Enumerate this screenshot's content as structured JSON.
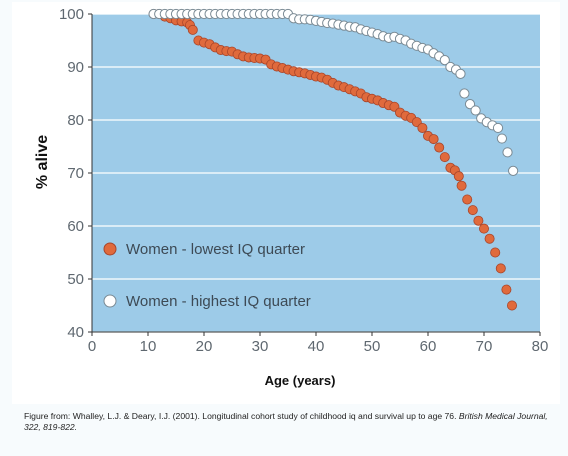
{
  "chart_data": {
    "type": "scatter",
    "title": "",
    "xlabel": "Age (years)",
    "ylabel": "% alive",
    "xlim": [
      0,
      80
    ],
    "ylim": [
      40,
      100
    ],
    "x_ticks": [
      "0",
      "10",
      "20",
      "30",
      "40",
      "50",
      "60",
      "70",
      "80"
    ],
    "y_ticks": [
      "40",
      "50",
      "60",
      "70",
      "80",
      "90",
      "100"
    ],
    "grid": true,
    "legend_position": "bottom-left",
    "series": [
      {
        "name": "Women - lowest IQ quarter",
        "color": "#e06a3c",
        "marker": "filled-circle",
        "points": [
          [
            11,
            100
          ],
          [
            12,
            100
          ],
          [
            13,
            99.5
          ],
          [
            14,
            99.2
          ],
          [
            15,
            98.8
          ],
          [
            16,
            98.6
          ],
          [
            17,
            98.4
          ],
          [
            17.5,
            97.9
          ],
          [
            18,
            97
          ],
          [
            19,
            95
          ],
          [
            20,
            94.6
          ],
          [
            21,
            94.3
          ],
          [
            22,
            93.7
          ],
          [
            23,
            93.2
          ],
          [
            24,
            93
          ],
          [
            25,
            92.9
          ],
          [
            26,
            92.4
          ],
          [
            27,
            92
          ],
          [
            28,
            91.8
          ],
          [
            29,
            91.7
          ],
          [
            30,
            91.6
          ],
          [
            31,
            91.4
          ],
          [
            32,
            90.5
          ],
          [
            33,
            90.1
          ],
          [
            34,
            89.8
          ],
          [
            35,
            89.5
          ],
          [
            36,
            89.2
          ],
          [
            37,
            89
          ],
          [
            38,
            88.8
          ],
          [
            39,
            88.5
          ],
          [
            40,
            88.2
          ],
          [
            41,
            88
          ],
          [
            42,
            87.6
          ],
          [
            43,
            87
          ],
          [
            44,
            86.5
          ],
          [
            45,
            86.2
          ],
          [
            46,
            85.8
          ],
          [
            47,
            85.4
          ],
          [
            48,
            85
          ],
          [
            49,
            84.3
          ],
          [
            50,
            84
          ],
          [
            51,
            83.7
          ],
          [
            52,
            83.2
          ],
          [
            53,
            82.8
          ],
          [
            54,
            82.5
          ],
          [
            55,
            81.4
          ],
          [
            56,
            80.8
          ],
          [
            57,
            80.4
          ],
          [
            58,
            79.6
          ],
          [
            59,
            78.5
          ],
          [
            60,
            77
          ],
          [
            61,
            76.4
          ],
          [
            62,
            74.8
          ],
          [
            63,
            73
          ],
          [
            64,
            71
          ],
          [
            64.8,
            70.5
          ],
          [
            65.5,
            69.4
          ],
          [
            66,
            67.6
          ],
          [
            67,
            65
          ],
          [
            68,
            63
          ],
          [
            69,
            61
          ],
          [
            70,
            59.5
          ],
          [
            71,
            57.6
          ],
          [
            72,
            55
          ],
          [
            73,
            52
          ],
          [
            74,
            48
          ],
          [
            75,
            45
          ]
        ]
      },
      {
        "name": "Women - highest IQ quarter",
        "color": "#ffffff",
        "marker": "open-circle",
        "points": [
          [
            11,
            100
          ],
          [
            12,
            100
          ],
          [
            13,
            100
          ],
          [
            14,
            100
          ],
          [
            15,
            100
          ],
          [
            16,
            100
          ],
          [
            17,
            100
          ],
          [
            18,
            100
          ],
          [
            19,
            100
          ],
          [
            20,
            100
          ],
          [
            21,
            100
          ],
          [
            22,
            100
          ],
          [
            23,
            100
          ],
          [
            24,
            100
          ],
          [
            25,
            100
          ],
          [
            26,
            100
          ],
          [
            27,
            100
          ],
          [
            28,
            100
          ],
          [
            29,
            100
          ],
          [
            30,
            100
          ],
          [
            31,
            100
          ],
          [
            32,
            100
          ],
          [
            33,
            100
          ],
          [
            34,
            100
          ],
          [
            35,
            100
          ],
          [
            36,
            99.2
          ],
          [
            37,
            99
          ],
          [
            38,
            99
          ],
          [
            39,
            98.9
          ],
          [
            40,
            98.7
          ],
          [
            41,
            98.5
          ],
          [
            42,
            98.3
          ],
          [
            43,
            98.2
          ],
          [
            44,
            98
          ],
          [
            45,
            97.8
          ],
          [
            46,
            97.6
          ],
          [
            47,
            97.5
          ],
          [
            48,
            97.1
          ],
          [
            49,
            96.8
          ],
          [
            50,
            96.5
          ],
          [
            51,
            96.2
          ],
          [
            52,
            95.8
          ],
          [
            53,
            95.5
          ],
          [
            54,
            95.7
          ],
          [
            55,
            95.3
          ],
          [
            56,
            95
          ],
          [
            57,
            94.4
          ],
          [
            58,
            94
          ],
          [
            59,
            93.6
          ],
          [
            60,
            93.3
          ],
          [
            61,
            92.6
          ],
          [
            62,
            92
          ],
          [
            63,
            91.3
          ],
          [
            64,
            90
          ],
          [
            65,
            89.5
          ],
          [
            65.8,
            88.7
          ],
          [
            66.5,
            85
          ],
          [
            67.5,
            83
          ],
          [
            68.5,
            81.8
          ],
          [
            69.5,
            80.3
          ],
          [
            70.5,
            79.6
          ],
          [
            71.5,
            79
          ],
          [
            72.5,
            78.5
          ],
          [
            73.2,
            76.5
          ],
          [
            74.2,
            73.9
          ],
          [
            75.2,
            70.4
          ]
        ]
      }
    ]
  },
  "caption": {
    "text": "Figure from: Whalley, L.J. & Deary, I.J. (2001). Longitudinal cohort study of childhood  iq and survival up to age 76.",
    "journal": "British Medical Journal, 322, 819-822."
  },
  "colors": {
    "plot_background": "#9dcbe8",
    "gridline": "#ffffff",
    "axis": "#333333"
  }
}
